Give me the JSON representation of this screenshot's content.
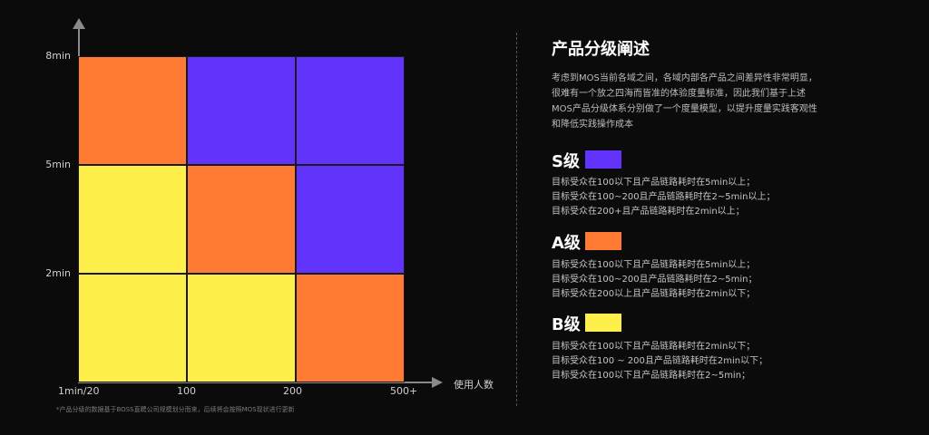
{
  "colors": {
    "purple": "#6233fb",
    "orange": "#ff7a33",
    "yellow": "#ffef4a",
    "axis": "#8a8a8a",
    "background": "#0b0b0b"
  },
  "chart_data": {
    "type": "heatmap",
    "x_ticks": [
      "1min/20",
      "100",
      "200",
      "500+"
    ],
    "y_ticks": [
      "8min",
      "5min",
      "2min"
    ],
    "x_axis_label": "使用人数",
    "grid_rows": [
      [
        "orange",
        "purple",
        "purple"
      ],
      [
        "yellow",
        "orange",
        "purple"
      ],
      [
        "yellow",
        "yellow",
        "orange"
      ]
    ],
    "legend": {
      "S级": "purple",
      "A级": "orange",
      "B级": "yellow"
    }
  },
  "footnote": "*产品分级的数据基于BOSS直聘公司规模划分而来，后续将会按照MOS现状进行更新",
  "panel": {
    "title": "产品分级阐述",
    "description": [
      "考虑到MOS当前各域之间，各域内部各产品之间差异性非常明显，",
      "很难有一个放之四海而皆准的体验度量标准，因此我们基于上述",
      "MOS产品分级体系分别做了一个度量模型，以提升度量实践客观性",
      "和降低实践操作成本"
    ],
    "levels": [
      {
        "name": "S级",
        "color": "purple",
        "lines": [
          "目标受众在100以下且产品链路耗时在5min以上；",
          "目标受众在100~200且产品链路耗时在2~5min以上；",
          "目标受众在200+且产品链路耗时在2min以上；"
        ]
      },
      {
        "name": "A级",
        "color": "orange",
        "lines": [
          "目标受众在100以下且产品链路耗时在5min以上；",
          "目标受众在100~200且产品链路耗时在2~5min；",
          "目标受众在200以上且产品链路耗时在2min以下；"
        ]
      },
      {
        "name": "B级",
        "color": "yellow",
        "lines": [
          "目标受众在100以下且产品链路耗时在2min以下；",
          "目标受众在100 ~ 200且产品链路耗时在2min以下；",
          "目标受众在100以下且产品链路耗时在2~5min；"
        ]
      }
    ]
  }
}
